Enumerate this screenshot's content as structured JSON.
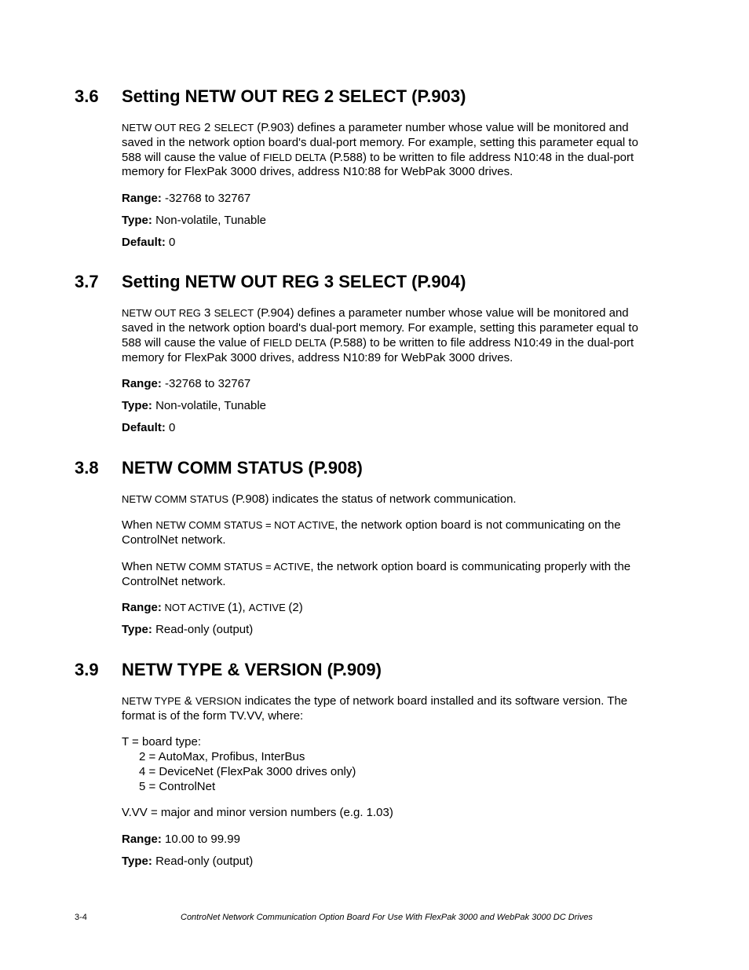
{
  "sections": {
    "s36": {
      "num": "3.6",
      "title": "Setting NETW OUT REG 2 SELECT (P.903)",
      "para_pre": "NETW OUT REG",
      "para_mid1": " 2 ",
      "para_mid_sc": "SELECT",
      "para_body1": " (P.903) defines a parameter number whose value will be monitored and saved in the network option board's dual-port memory. For example, setting this parameter equal to 588 will cause the value of ",
      "para_sc2": "FIELD DELTA",
      "para_body2": " (P.588) to be written to file address N10:48 in the dual-port memory for FlexPak 3000 drives, address N10:88 for WebPak 3000 drives.",
      "range_label": "Range:",
      "range_value": " -32768 to 32767",
      "type_label": "Type:",
      "type_value": " Non-volatile, Tunable",
      "default_label": "Default:",
      "default_value": " 0"
    },
    "s37": {
      "num": "3.7",
      "title": "Setting NETW OUT REG 3 SELECT (P.904)",
      "para_pre": "NETW OUT REG",
      "para_mid1": " 3 ",
      "para_mid_sc": "SELECT",
      "para_body1": " (P.904) defines a parameter number whose value will be monitored and saved in the network option board's dual-port memory. For example, setting this parameter equal to 588 will cause the value of ",
      "para_sc2": "FIELD DELTA",
      "para_body2": " (P.588) to be written to file address N10:49 in the dual-port memory for FlexPak 3000 drives, address N10:89 for WebPak 3000 drives.",
      "range_label": "Range:",
      "range_value": " -32768 to 32767",
      "type_label": "Type:",
      "type_value": " Non-volatile, Tunable",
      "default_label": "Default:",
      "default_value": " 0"
    },
    "s38": {
      "num": "3.8",
      "title": "NETW COMM STATUS (P.908)",
      "p1_sc": "NETW COMM STATUS",
      "p1_rest": " (P.908) indicates the status of network communication.",
      "p2_pre": "When ",
      "p2_sc": "NETW COMM STATUS = NOT ACTIVE",
      "p2_rest": ", the network option board is not communicating on the ControlNet network.",
      "p3_pre": "When ",
      "p3_sc": "NETW COMM STATUS = ACTIVE",
      "p3_rest": ", the network option board is communicating properly with the ControlNet network.",
      "range_label": "Range:",
      "range_sc1": " NOT ACTIVE ",
      "range_mid": "(1), ",
      "range_sc2": "ACTIVE ",
      "range_end": "(2)",
      "type_label": "Type:",
      "type_value": " Read-only (output)"
    },
    "s39": {
      "num": "3.9",
      "title": "NETW TYPE & VERSION (P.909)",
      "p1_sc": "NETW TYPE",
      "p1_mid": " & ",
      "p1_sc2": "VERSION",
      "p1_rest": " indicates the type of network board installed and its software version. The format is of the form TV.VV, where:",
      "t_line": "T = board type:",
      "t_2": "2 = AutoMax, Profibus, InterBus",
      "t_4": "4 = DeviceNet (FlexPak 3000 drives only)",
      "t_5": "5 = ControlNet",
      "vvv": "V.VV = major and minor version numbers (e.g. 1.03)",
      "range_label": "Range:",
      "range_value": " 10.00 to 99.99",
      "type_label": "Type:",
      "type_value": " Read-only (output)"
    }
  },
  "footer": {
    "page": "3-4",
    "title": "ControNet Network Communication Option Board For Use With FlexPak 3000 and WebPak 3000 DC Drives"
  }
}
